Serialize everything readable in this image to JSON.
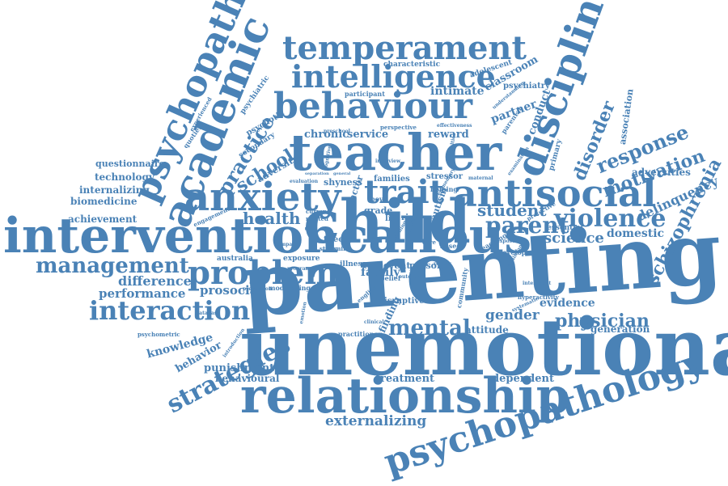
{
  "colors": {
    "word": "#4a82b6",
    "background": "#ffffff"
  },
  "words": [
    {
      "text": "parenting"
    },
    {
      "text": "unemotional"
    },
    {
      "text": "child"
    },
    {
      "text": "interventioncallous"
    },
    {
      "text": "teacher"
    },
    {
      "text": "relationship"
    },
    {
      "text": "anxiety"
    },
    {
      "text": "antisocial"
    },
    {
      "text": "behaviour"
    },
    {
      "text": "psychopathology"
    },
    {
      "text": "academic"
    },
    {
      "text": "discipline"
    },
    {
      "text": "psychopathy"
    },
    {
      "text": "problem"
    },
    {
      "text": "temperament"
    },
    {
      "text": "intelligence"
    },
    {
      "text": "trait"
    },
    {
      "text": "interaction"
    },
    {
      "text": "management"
    },
    {
      "text": "violence"
    },
    {
      "text": "mental"
    },
    {
      "text": "strategies"
    },
    {
      "text": "parent"
    },
    {
      "text": "schizophrenia"
    },
    {
      "text": "response"
    },
    {
      "text": "practice"
    },
    {
      "text": "disorder"
    },
    {
      "text": "school"
    },
    {
      "text": "motivation"
    },
    {
      "text": "student"
    },
    {
      "text": "health"
    },
    {
      "text": "physician"
    },
    {
      "text": "science"
    },
    {
      "text": "externalizing"
    },
    {
      "text": "delinquency"
    },
    {
      "text": "gender"
    },
    {
      "text": "difference"
    },
    {
      "text": "performance"
    },
    {
      "text": "prosocial"
    },
    {
      "text": "knowledge"
    },
    {
      "text": "behavior"
    },
    {
      "text": "punishment"
    },
    {
      "text": "behavioural"
    },
    {
      "text": "treatment"
    },
    {
      "text": "dependent"
    },
    {
      "text": "evidence"
    },
    {
      "text": "generation"
    },
    {
      "text": "domestic"
    },
    {
      "text": "adversities"
    },
    {
      "text": "achievement"
    },
    {
      "text": "biomedicine"
    },
    {
      "text": "internalizing"
    },
    {
      "text": "technology"
    },
    {
      "text": "questionnaire"
    },
    {
      "text": "chronic"
    },
    {
      "text": "service"
    },
    {
      "text": "reward"
    },
    {
      "text": "intimate"
    },
    {
      "text": "partner"
    },
    {
      "text": "conduct"
    },
    {
      "text": "association"
    },
    {
      "text": "classroom"
    },
    {
      "text": "adolescent"
    },
    {
      "text": "psychiatry"
    },
    {
      "text": "characteristic"
    },
    {
      "text": "participant"
    },
    {
      "text": "psychiatric"
    },
    {
      "text": "psychotic"
    },
    {
      "text": "secondary"
    },
    {
      "text": "quotient"
    },
    {
      "text": "experienced"
    },
    {
      "text": "adversity"
    },
    {
      "text": "shyness"
    },
    {
      "text": "families"
    },
    {
      "text": "stressor"
    },
    {
      "text": "factor"
    },
    {
      "text": "autism"
    },
    {
      "text": "grade"
    },
    {
      "text": "risk"
    },
    {
      "text": "life"
    },
    {
      "text": "boy"
    },
    {
      "text": "theory"
    },
    {
      "text": "study"
    },
    {
      "text": "mind"
    },
    {
      "text": "family"
    },
    {
      "text": "event"
    },
    {
      "text": "person"
    },
    {
      "text": "illness"
    },
    {
      "text": "exposure"
    },
    {
      "text": "australia"
    },
    {
      "text": "moderating"
    },
    {
      "text": "disruptive"
    },
    {
      "text": "belief"
    },
    {
      "text": "attitude"
    },
    {
      "text": "finding"
    },
    {
      "text": "practitioner"
    },
    {
      "text": "english"
    },
    {
      "text": "community"
    },
    {
      "text": "development"
    },
    {
      "text": "essential"
    },
    {
      "text": "protective"
    },
    {
      "text": "teaching"
    },
    {
      "text": "primary"
    },
    {
      "text": "parental"
    },
    {
      "text": "examination"
    },
    {
      "text": "hyperactivity"
    },
    {
      "text": "psychometric"
    },
    {
      "text": "introduction"
    },
    {
      "text": "engagement"
    },
    {
      "text": "helping"
    },
    {
      "text": "current"
    },
    {
      "text": "related"
    },
    {
      "text": "work"
    },
    {
      "text": "care"
    },
    {
      "text": "perspective"
    },
    {
      "text": "effectiveness"
    },
    {
      "text": "understanding"
    },
    {
      "text": "interview"
    },
    {
      "text": "evaluation"
    },
    {
      "text": "program"
    },
    {
      "text": "clinical"
    },
    {
      "text": "review"
    },
    {
      "text": "prevention"
    },
    {
      "text": "elementary"
    },
    {
      "text": "maternal"
    },
    {
      "text": "difficulties"
    },
    {
      "text": "outcome"
    },
    {
      "text": "preschool"
    },
    {
      "text": "based"
    },
    {
      "text": "learning"
    },
    {
      "text": "empathy"
    },
    {
      "text": "emotion"
    },
    {
      "text": "cognitive"
    },
    {
      "text": "social"
    },
    {
      "text": "systematic"
    },
    {
      "text": "significant"
    },
    {
      "text": "intelligent"
    },
    {
      "text": "exposed"
    },
    {
      "text": "database"
    },
    {
      "text": "separation"
    },
    {
      "text": "general"
    }
  ]
}
